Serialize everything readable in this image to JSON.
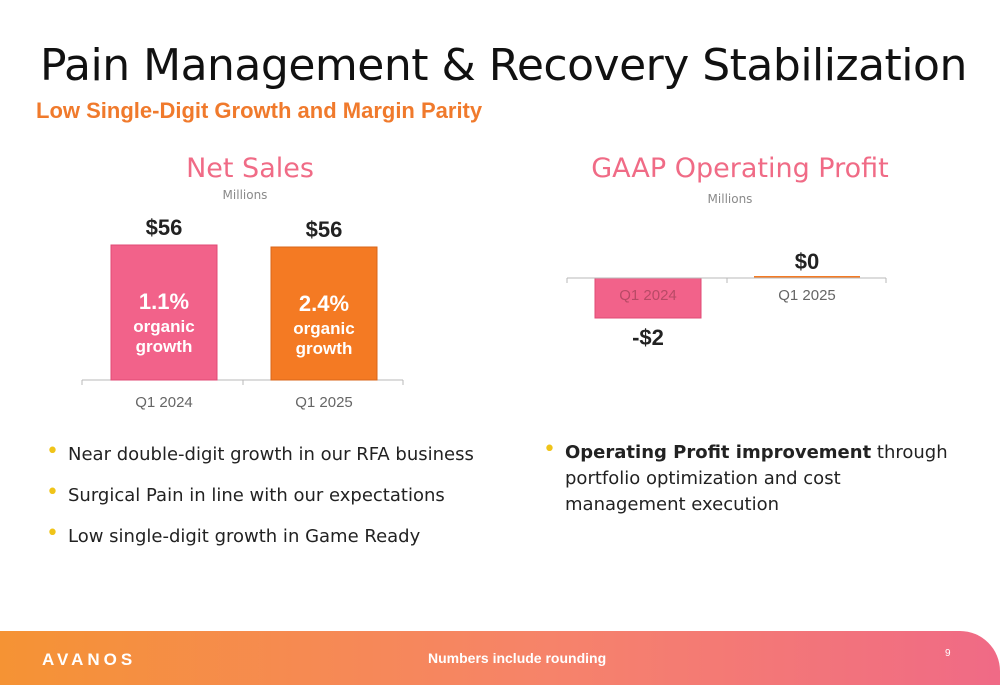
{
  "slide": {
    "title": "Pain Management & Recovery Stabilization",
    "subtitle": "Low Single-Digit Growth and Margin Parity"
  },
  "chart_data": [
    {
      "type": "bar",
      "title": "Net Sales",
      "units": "Millions",
      "categories": [
        "Q1 2024",
        "Q1 2025"
      ],
      "values": [
        56,
        56
      ],
      "value_labels": [
        "$56",
        "$56"
      ],
      "bar_annotations": [
        {
          "pct": "1.1%",
          "line1": "organic",
          "line2": "growth"
        },
        {
          "pct": "2.4%",
          "line1": "organic",
          "line2": "growth"
        }
      ],
      "colors": [
        "#f2628a",
        "#f47a23"
      ],
      "ylim": [
        0,
        56
      ],
      "grid": false
    },
    {
      "type": "bar",
      "title": "GAAP Operating Profit",
      "units": "Millions",
      "categories": [
        "Q1 2024",
        "Q1 2025"
      ],
      "values": [
        -2,
        0
      ],
      "value_labels": [
        "-$2",
        "$0"
      ],
      "colors": [
        "#f2628a",
        "#f47a23"
      ],
      "ylim": [
        -2,
        0
      ],
      "grid": false
    }
  ],
  "left_bullets": [
    {
      "text": "Near double-digit growth in our RFA business"
    },
    {
      "text": "Surgical Pain in line with our expectations"
    },
    {
      "text": "Low single-digit growth in Game Ready"
    }
  ],
  "right_bullet": {
    "bold": "Operating Profit improvement",
    "rest": " through portfolio optimization and cost management execution"
  },
  "footer": {
    "logo": "AVANOS",
    "note": "Numbers include rounding",
    "page": "9",
    "colors": {
      "start": "#f59334",
      "end": "#f06a86"
    }
  }
}
